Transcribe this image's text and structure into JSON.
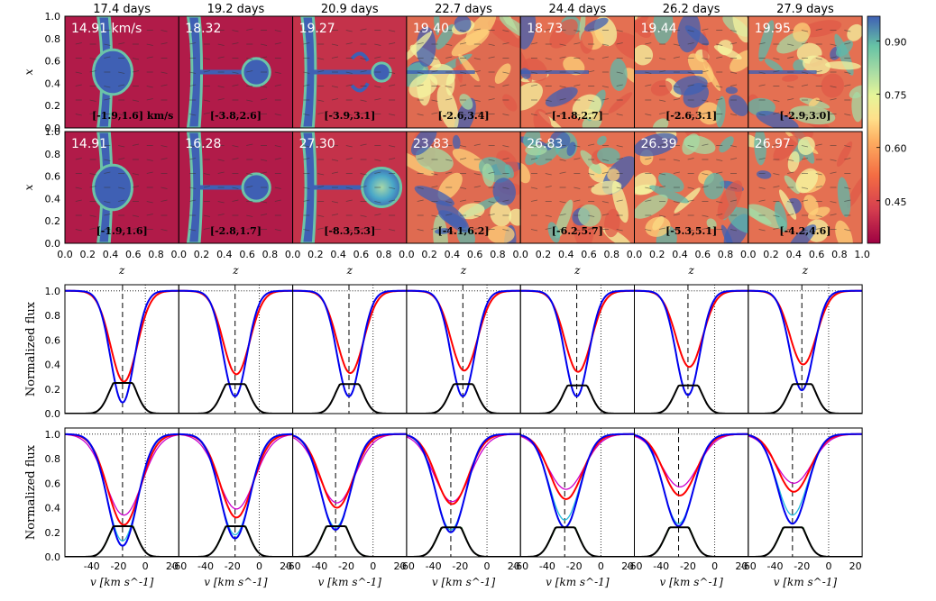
{
  "chart_data": {
    "type": "heatmap+line",
    "columns": [
      "17.4 days",
      "19.2 days",
      "20.9 days",
      "22.7 days",
      "24.4 days",
      "26.2 days",
      "27.9 days"
    ],
    "maps": {
      "x_ticks": [
        "0.0",
        "0.2",
        "0.4",
        "0.6",
        "0.8",
        "1.0"
      ],
      "y_ticks": [
        "0.0",
        "0.2",
        "0.4",
        "0.6",
        "0.8",
        "1.0"
      ],
      "xlabel": "z",
      "ylabel": "x",
      "colorbar": {
        "ticks": [
          "0.90",
          "0.75",
          "0.60",
          "0.45"
        ],
        "range": [
          0.33,
          0.97
        ]
      },
      "row1": {
        "velocity": [
          "14.91 km/s",
          "18.32",
          "19.27",
          "19.40",
          "18.73",
          "19.44",
          "19.95"
        ],
        "range": [
          "[-1.9,1.6] km/s",
          "[-3.8,2.6]",
          "[-3.9,3.1]",
          "[-2.6,3.4]",
          "[-1.8,2.7]",
          "[-2.6,3.1]",
          "[-2.9,3.0]"
        ]
      },
      "row2": {
        "velocity": [
          "14.91",
          "16.28",
          "27.30",
          "23.83",
          "26.83",
          "26.39",
          "26.97"
        ],
        "range": [
          "[-1.9,1.6]",
          "[-2.8,1.7]",
          "[-8.3,5.3]",
          "[-4.1,6.2]",
          "[-6.2,5.7]",
          "[-5.3,5.1]",
          "[-4.2,4.6]"
        ]
      }
    },
    "spectra": {
      "ylabel": "Normalized flux",
      "xlabel": "v [km s^-1]",
      "y_ticks": [
        "0.0",
        "0.2",
        "0.4",
        "0.6",
        "0.8",
        "1.0"
      ],
      "x_ticks_first": [
        "-40",
        "-20",
        "0",
        "20"
      ],
      "x_ticks_other": [
        "-60",
        "-40",
        "-20",
        "0",
        "20"
      ],
      "xlim": [
        -60,
        25
      ],
      "ylim": [
        0,
        1.05
      ],
      "row1": {
        "center": [
          -17,
          -18,
          -18,
          -18,
          -18,
          -20,
          -20
        ],
        "red_min": [
          0.26,
          0.32,
          0.33,
          0.35,
          0.34,
          0.38,
          0.4
        ],
        "blue_min": [
          0.09,
          0.14,
          0.14,
          0.14,
          0.14,
          0.15,
          0.19
        ],
        "black_peak": [
          0.25,
          0.24,
          0.24,
          0.24,
          0.23,
          0.23,
          0.24
        ]
      },
      "row2": {
        "center": [
          -17,
          -18,
          -28,
          -27,
          -27,
          -27,
          -27
        ],
        "red_min": [
          0.26,
          0.32,
          0.4,
          0.43,
          0.47,
          0.5,
          0.53
        ],
        "magenta_min": [
          0.34,
          0.39,
          0.44,
          0.45,
          0.55,
          0.57,
          0.6
        ],
        "blue_min": [
          0.09,
          0.15,
          0.22,
          0.2,
          0.24,
          0.25,
          0.27
        ],
        "cyan_min": [
          0.13,
          0.18,
          0.24,
          0.22,
          0.3,
          0.27,
          0.34
        ],
        "black_peak": [
          0.25,
          0.25,
          0.25,
          0.24,
          0.24,
          0.24,
          0.24
        ]
      }
    },
    "colors": {
      "red": "#ff0000",
      "blue": "#0000ee",
      "black": "#000000",
      "magenta": "#cc00cc",
      "cyan": "#22bbdd",
      "green": "#008800"
    }
  }
}
